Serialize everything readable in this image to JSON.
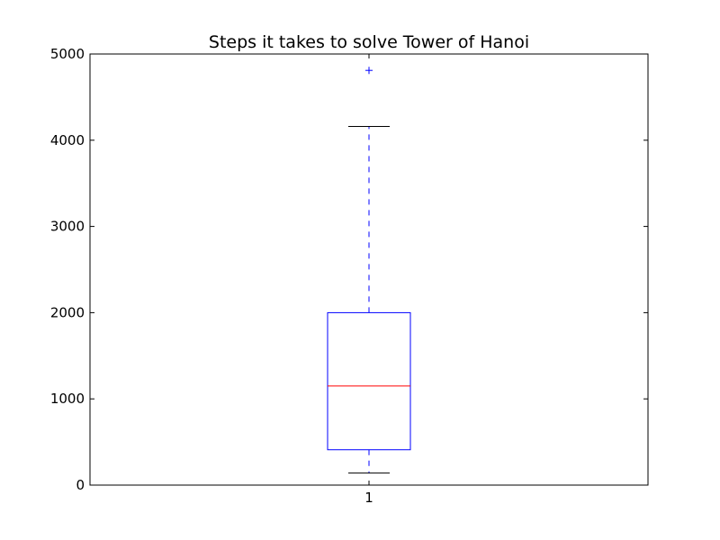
{
  "chart_data": {
    "type": "box",
    "title": "Steps it takes to solve Tower of Hanoi",
    "xlabel": "",
    "ylabel": "",
    "ylim": [
      0,
      5000
    ],
    "y_ticks": [
      0,
      1000,
      2000,
      3000,
      4000,
      5000
    ],
    "x_ticks": [
      "1"
    ],
    "grid": false,
    "boxes": [
      {
        "category": "1",
        "whisker_low": 140,
        "q1": 410,
        "median": 1150,
        "q3": 2000,
        "whisker_high": 4160,
        "outliers": [
          4810
        ]
      }
    ],
    "colors": {
      "box": "#0000ff",
      "median": "#ff0000",
      "whisker": "#0000ff",
      "cap": "#000000",
      "outlier": "#0000ff",
      "axes": "#000000"
    }
  }
}
